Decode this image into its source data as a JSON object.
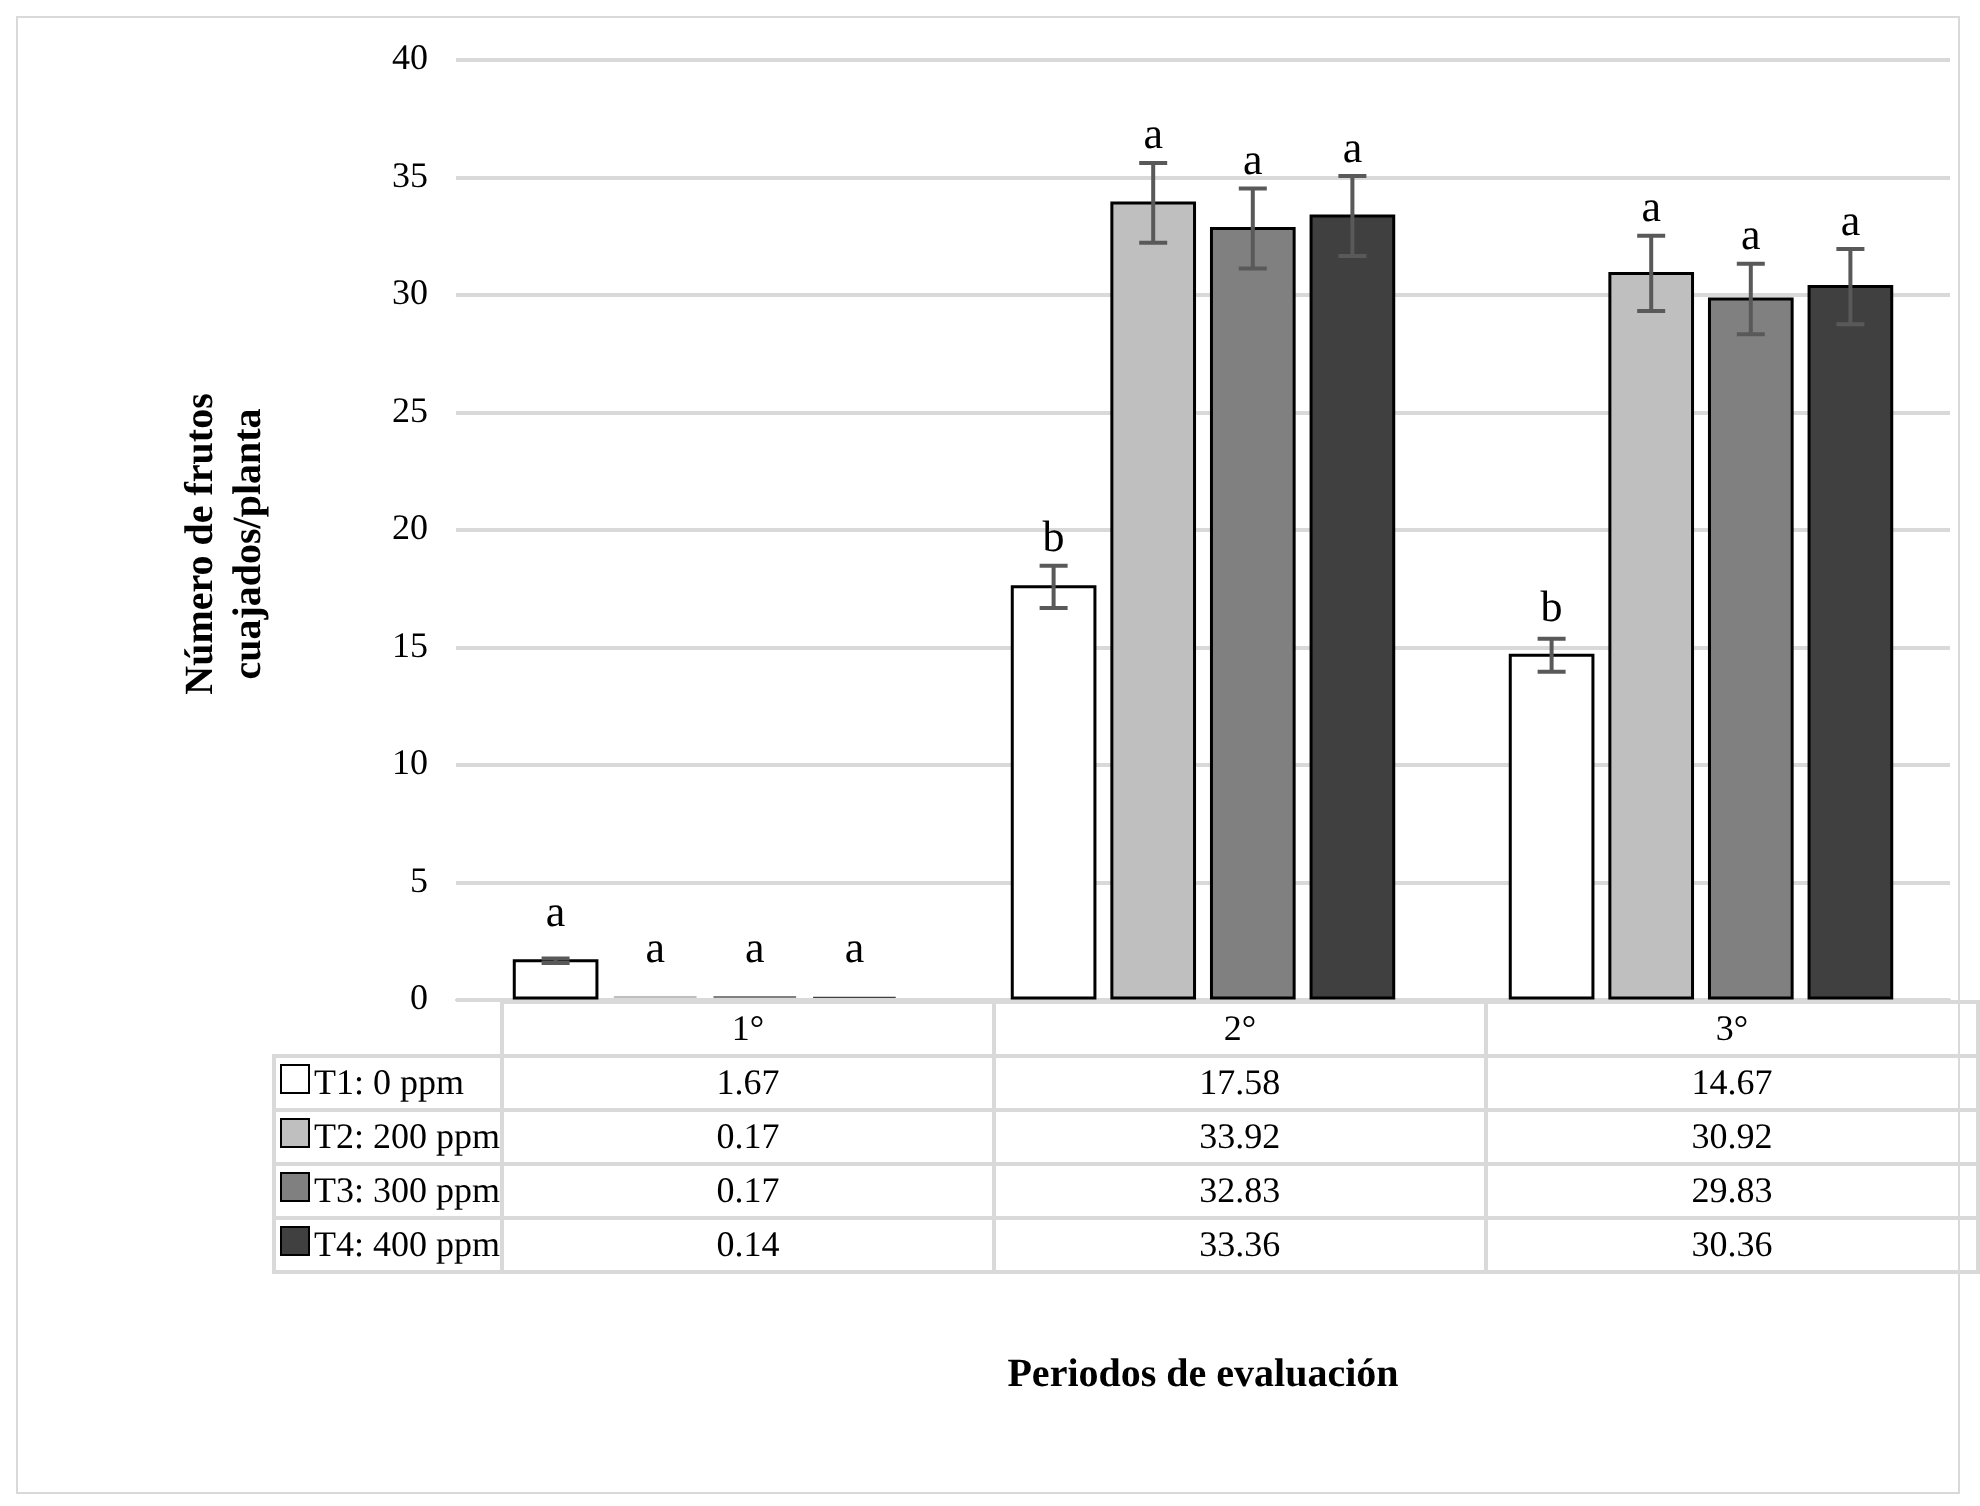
{
  "chart_data": {
    "type": "bar",
    "ylabel": "Número de frutos cuajados/planta",
    "categories": [
      "1°",
      "2°",
      "3°"
    ],
    "series": [
      {
        "name": "T1: 0 ppm",
        "color": "#ffffff",
        "values": [
          1.67,
          17.58,
          14.67
        ],
        "errors": [
          0.1,
          0.9,
          0.7
        ]
      },
      {
        "name": "T2: 200 ppm",
        "color": "#bfbfbf",
        "values": [
          0.17,
          33.92,
          30.92
        ],
        "errors": [
          null,
          1.7,
          1.6
        ]
      },
      {
        "name": "T3: 300 ppm",
        "color": "#808080",
        "values": [
          0.17,
          32.83,
          29.83
        ],
        "errors": [
          null,
          1.7,
          1.5
        ]
      },
      {
        "name": "T4: 400 ppm",
        "color": "#404040",
        "values": [
          0.14,
          33.36,
          30.36
        ],
        "errors": [
          null,
          1.7,
          1.6
        ]
      }
    ],
    "annotations": [
      "a",
      "a",
      "a",
      "a",
      "b",
      "a",
      "a",
      "a",
      "b",
      "a",
      "a",
      "a",
      "Periodos de evaluación"
    ],
    "ylim": [
      0,
      40
    ],
    "yticks": [
      0,
      5,
      10,
      15,
      20,
      25,
      30,
      35,
      40
    ],
    "grid": "y",
    "legend": "bottom",
    "data_labels": true
  }
}
